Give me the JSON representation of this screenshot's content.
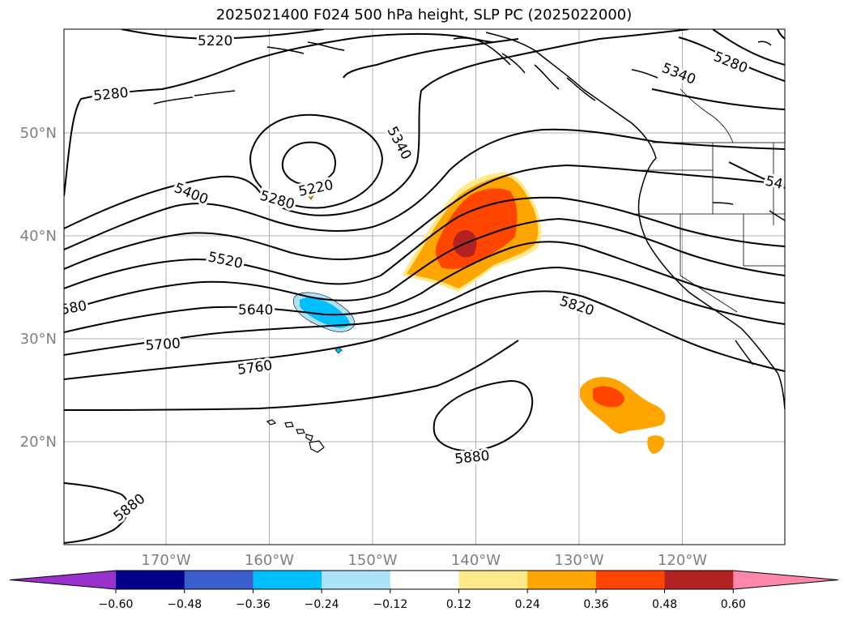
{
  "title": "2025021400 F024 500 hPa height, SLP PC (2025022000)",
  "lat_ticks": [
    {
      "label": "50°N",
      "value": 50
    },
    {
      "label": "40°N",
      "value": 40
    },
    {
      "label": "30°N",
      "value": 30
    },
    {
      "label": "20°N",
      "value": 20
    }
  ],
  "lon_ticks": [
    {
      "label": "170°W",
      "value": -170
    },
    {
      "label": "160°W",
      "value": -160
    },
    {
      "label": "150°W",
      "value": -150
    },
    {
      "label": "140°W",
      "value": -140
    },
    {
      "label": "130°W",
      "value": -130
    },
    {
      "label": "120°W",
      "value": -120
    }
  ],
  "contour_labels": [
    "5220",
    "5280",
    "5340",
    "5400",
    "5520",
    "5640",
    "5700",
    "5760",
    "5820",
    "5880",
    "580",
    "54"
  ],
  "colorbar": {
    "ticks": [
      "−0.60",
      "−0.48",
      "−0.36",
      "−0.24",
      "−0.12",
      "0.12",
      "0.24",
      "0.36",
      "0.48",
      "0.60"
    ],
    "colors": [
      "#9932CC",
      "#00008B",
      "#3A5FCD",
      "#00BFFF",
      "#ADE2F8",
      "#FFFFFF",
      "#FFE98A",
      "#FFA500",
      "#FF4500",
      "#B22222",
      "#FF88AA"
    ]
  }
}
